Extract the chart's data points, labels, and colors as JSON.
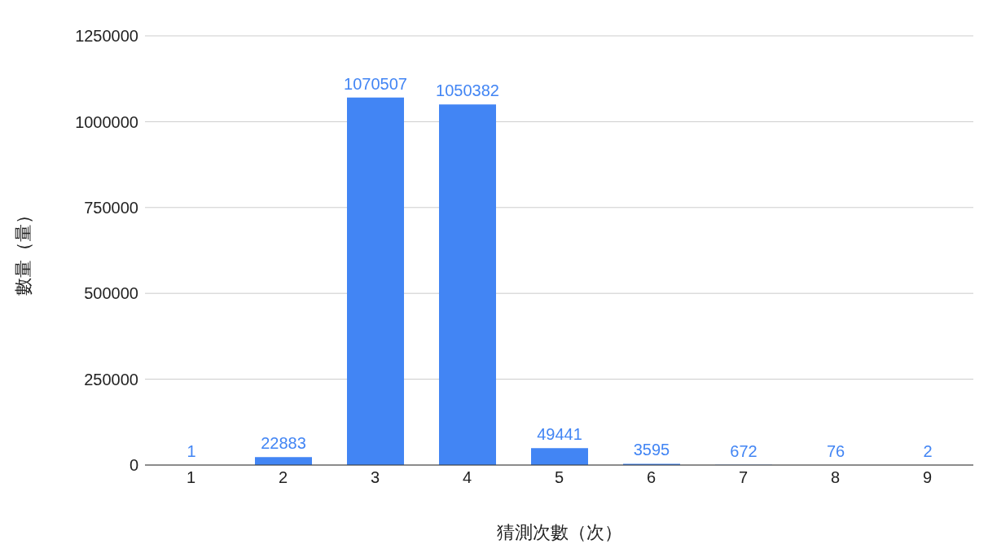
{
  "chart_data": {
    "type": "bar",
    "xlabel": "猜測次數（次）",
    "ylabel": "數量（量）",
    "categories": [
      "1",
      "2",
      "3",
      "4",
      "5",
      "6",
      "7",
      "8",
      "9"
    ],
    "values": [
      1,
      22883,
      1070507,
      1050382,
      49441,
      3595,
      672,
      76,
      2
    ],
    "color": "#4285f4",
    "ylim": [
      0,
      1250000
    ],
    "yticks": [
      0,
      250000,
      500000,
      750000,
      1000000,
      1250000
    ],
    "grid": "y",
    "data_labels": true
  }
}
